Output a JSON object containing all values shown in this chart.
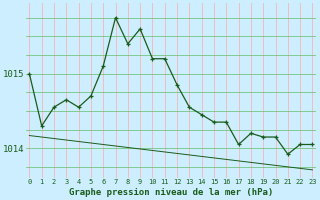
{
  "title": "Graphe pression niveau de la mer (hPa)",
  "background_color": "#cceeff",
  "grid_color_v": "#ffaaaa",
  "grid_color_h": "#66bb66",
  "line_color": "#1a5c1a",
  "hours": [
    0,
    1,
    2,
    3,
    4,
    5,
    6,
    7,
    8,
    9,
    10,
    11,
    12,
    13,
    14,
    15,
    16,
    17,
    18,
    19,
    20,
    21,
    22,
    23
  ],
  "pressure_main": [
    1015.0,
    1014.3,
    1014.55,
    1014.65,
    1014.55,
    1014.7,
    1015.1,
    1015.75,
    1015.4,
    1015.6,
    1015.2,
    1015.2,
    1014.85,
    1014.55,
    1014.45,
    1014.35,
    1014.35,
    1014.05,
    1014.2,
    1014.15,
    1014.15,
    1013.92,
    1014.05,
    1014.05
  ],
  "pressure_trend": [
    1014.17,
    1014.15,
    1014.13,
    1014.11,
    1014.09,
    1014.07,
    1014.05,
    1014.03,
    1014.01,
    1013.99,
    1013.97,
    1013.95,
    1013.93,
    1013.91,
    1013.89,
    1013.87,
    1013.85,
    1013.83,
    1013.81,
    1013.79,
    1013.77,
    1013.75,
    1013.73,
    1013.71
  ],
  "yticks": [
    1014,
    1015
  ],
  "ylim": [
    1013.6,
    1015.95
  ],
  "xlim": [
    -0.3,
    23.3
  ],
  "figsize": [
    3.2,
    2.0
  ],
  "dpi": 100
}
